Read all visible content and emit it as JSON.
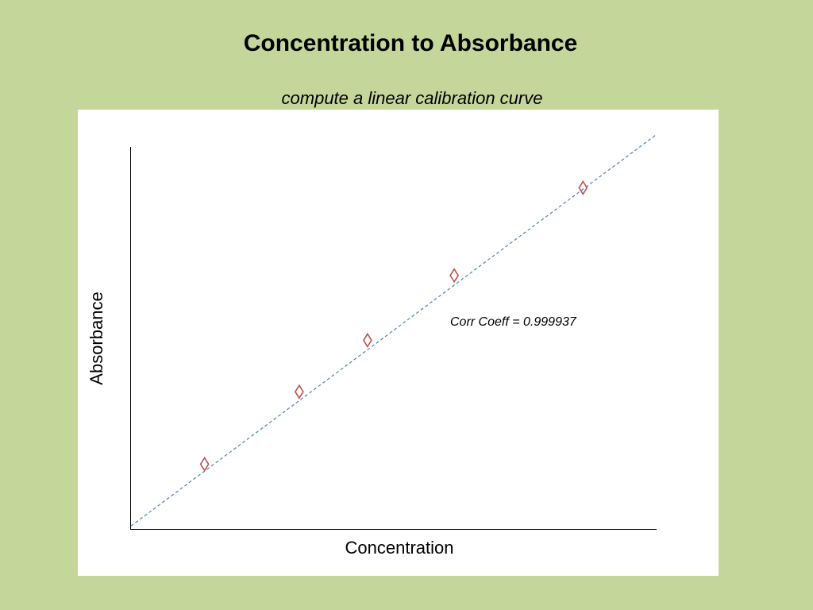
{
  "slide": {
    "background": "#c5d69b",
    "title": "Concentration to Absorbance",
    "subtitle": "compute a linear calibration curve"
  },
  "chart_data": {
    "type": "scatter",
    "title": "",
    "xlabel": "Concentration",
    "ylabel": "Absorbance",
    "xlim": [
      0,
      10
    ],
    "ylim": [
      0,
      10
    ],
    "grid": false,
    "legend": "none",
    "series": [
      {
        "x": [
          1.4,
          3.2,
          4.5,
          6.15,
          8.6
        ],
        "y": [
          1.7,
          3.6,
          4.95,
          6.65,
          8.95
        ],
        "marker": "diamond",
        "color": "#c0504d"
      }
    ],
    "trendline": {
      "type": "linear",
      "x": [
        0,
        10
      ],
      "y": [
        0.08,
        10.35
      ],
      "style": "dashed",
      "color": "#4f81bd"
    },
    "annotation": "Corr  Coeff = 0.999937"
  }
}
